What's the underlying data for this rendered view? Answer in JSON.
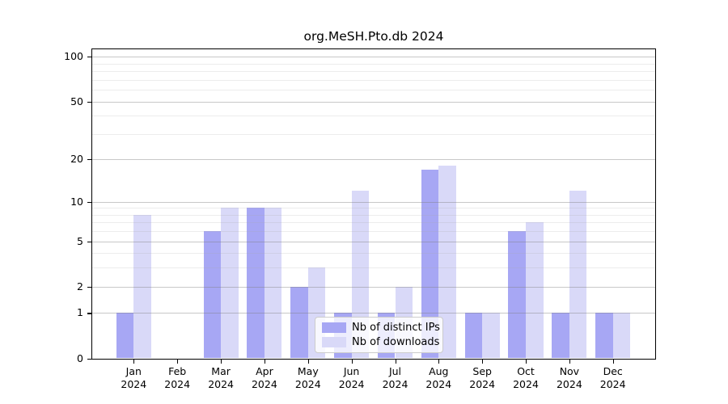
{
  "figure_title": "org.MeSH.Pto.db 2024",
  "chart_data": {
    "type": "bar",
    "title": "org.MeSH.Pto.db 2024",
    "x_categories": [
      "Jan",
      "Feb",
      "Mar",
      "Apr",
      "May",
      "Jun",
      "Jul",
      "Aug",
      "Sep",
      "Oct",
      "Nov",
      "Dec"
    ],
    "x_year_label": "2024",
    "series": [
      {
        "key": "distinct-ips",
        "name": "Nb of distinct IPs",
        "color": "#a7a7f4",
        "values": [
          1,
          0,
          6,
          9,
          2,
          1,
          1,
          17,
          1,
          6,
          1,
          1
        ]
      },
      {
        "key": "downloads",
        "name": "Nb of downloads",
        "color": "#d9d9f8",
        "values": [
          8,
          0,
          9,
          9,
          3,
          12,
          2,
          18,
          1,
          7,
          12,
          1
        ]
      }
    ],
    "y_scale": "log1p",
    "ylim": [
      0,
      100
    ],
    "y_ticks": [
      0,
      1,
      2,
      5,
      10,
      20,
      50,
      100
    ],
    "y_minor_ticks": [
      3,
      4,
      6,
      7,
      8,
      9,
      30,
      40,
      60,
      70,
      80,
      90
    ],
    "grid": "on",
    "legend_position": "lower center",
    "axis_color": "#000000",
    "background_color": "#ffffff"
  }
}
